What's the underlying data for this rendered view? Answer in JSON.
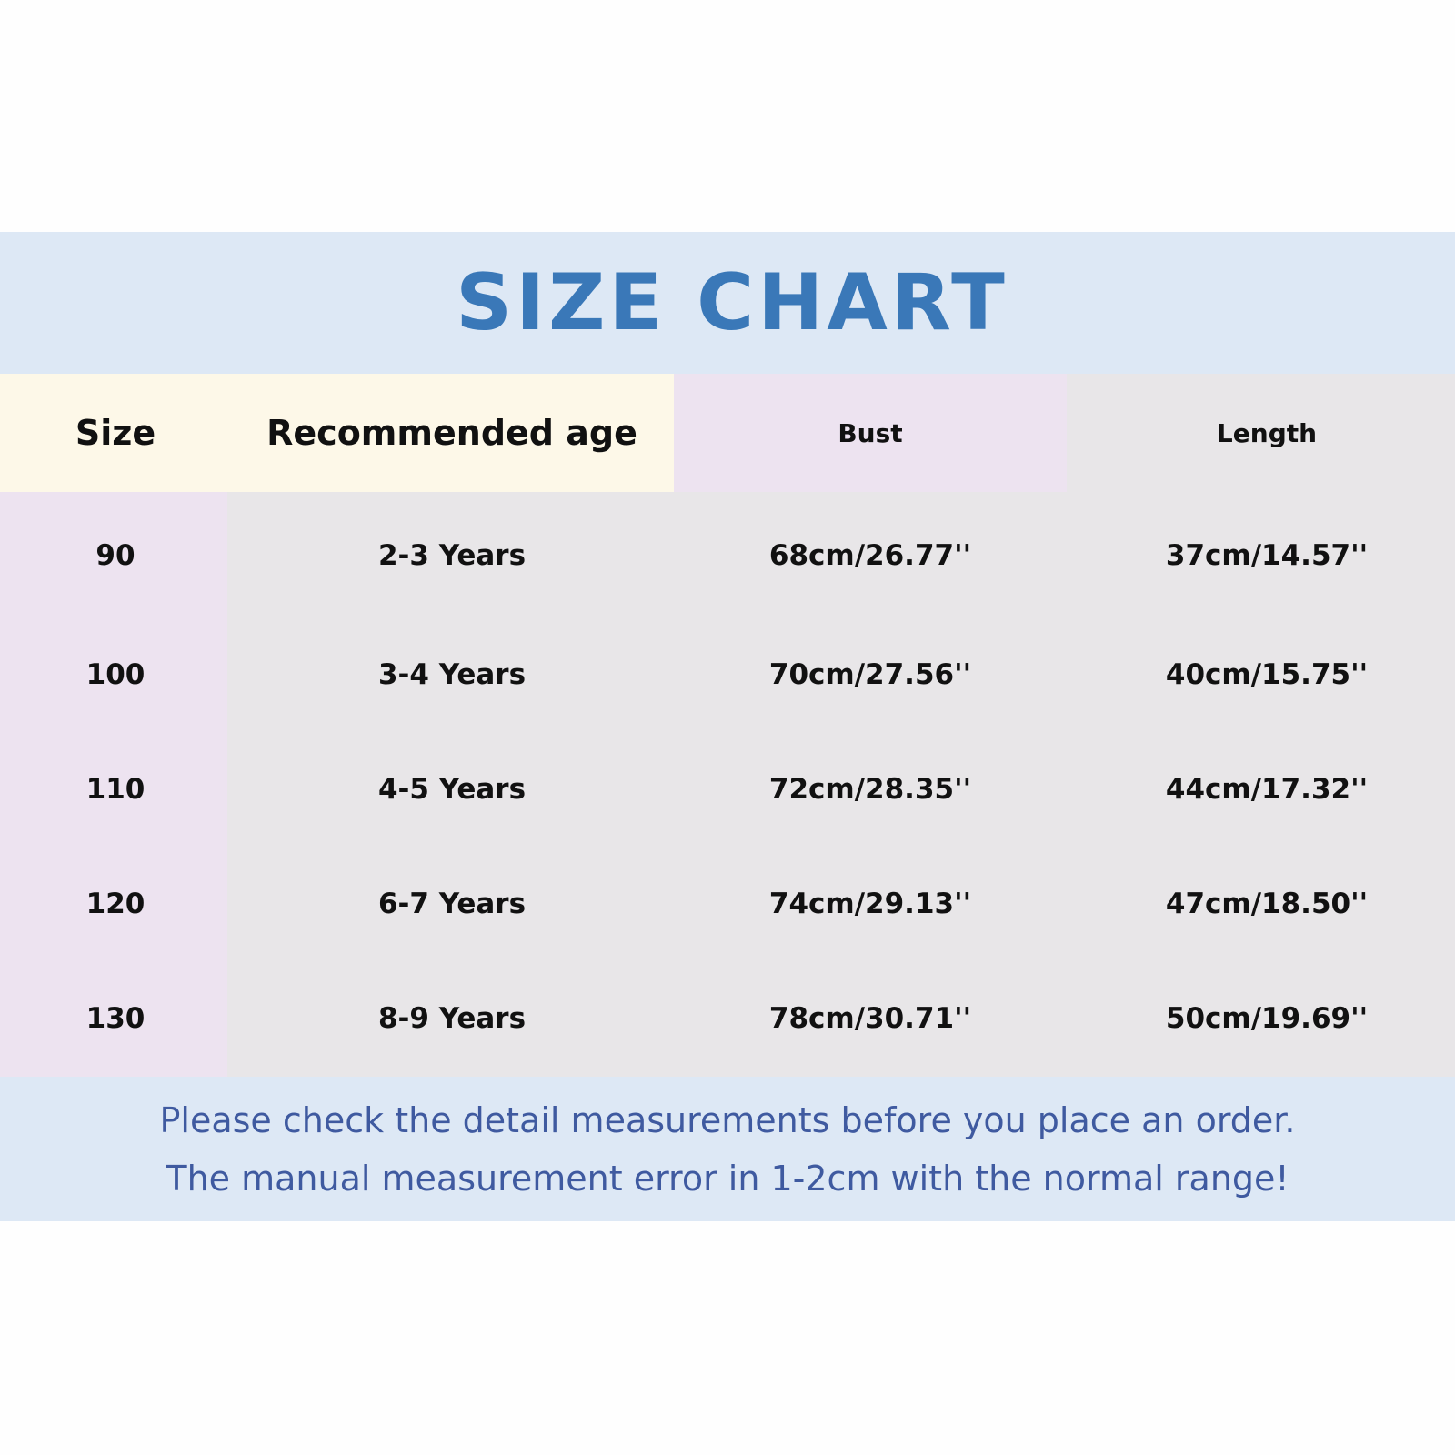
{
  "title": "SIZE CHART",
  "table": {
    "headers": [
      "Size",
      "Recommended age",
      "Bust",
      "Length"
    ],
    "rows": [
      [
        "90",
        "2-3 Years",
        "68cm/26.77''",
        "37cm/14.57''"
      ],
      [
        "100",
        "3-4 Years",
        "70cm/27.56''",
        "40cm/15.75''"
      ],
      [
        "110",
        "4-5 Years",
        "72cm/28.35''",
        "44cm/17.32''"
      ],
      [
        "120",
        "6-7 Years",
        "74cm/29.13''",
        "47cm/18.50''"
      ],
      [
        "130",
        "8-9 Years",
        "78cm/30.71''",
        "50cm/19.69''"
      ]
    ]
  },
  "footer": {
    "line1": "Please check the detail measurements before you place an order.",
    "line2": "The manual measurement error in 1-2cm with the normal range!"
  },
  "colors": {
    "band": "#dde8f5",
    "title": "#3a78b8",
    "header_yellow": "#fdf8e8",
    "header_pink": "#ede3f0",
    "body_gray": "#e8e6e8",
    "footer_text": "#3f5aa0"
  }
}
